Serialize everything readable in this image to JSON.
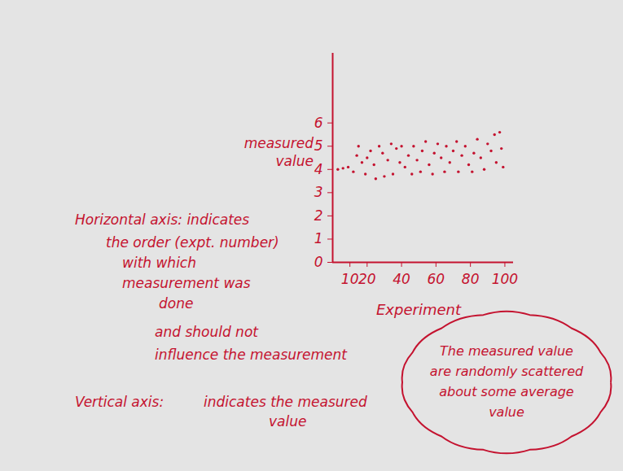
{
  "chart_data": {
    "type": "scatter",
    "x_label": "Experiment",
    "y_label": "measured value",
    "x": [
      3,
      6,
      9,
      12,
      14,
      15,
      17,
      19,
      20,
      22,
      24,
      25,
      27,
      29,
      30,
      32,
      34,
      35,
      37,
      39,
      40,
      42,
      44,
      46,
      47,
      49,
      51,
      52,
      54,
      56,
      58,
      59,
      61,
      63,
      65,
      66,
      68,
      70,
      72,
      73,
      75,
      77,
      79,
      81,
      82,
      84,
      86,
      88,
      90,
      92,
      94,
      95,
      97,
      98,
      99
    ],
    "values": [
      4.0,
      4.05,
      4.1,
      3.9,
      4.6,
      5.0,
      4.3,
      3.8,
      4.5,
      4.8,
      4.2,
      3.6,
      5.0,
      4.7,
      3.7,
      4.4,
      5.1,
      3.8,
      4.9,
      4.3,
      5.0,
      4.1,
      4.6,
      3.8,
      5.0,
      4.4,
      3.9,
      4.8,
      5.2,
      4.2,
      3.8,
      4.7,
      5.1,
      4.5,
      3.9,
      5.0,
      4.3,
      4.8,
      5.2,
      3.9,
      4.6,
      5.0,
      4.2,
      3.9,
      4.7,
      5.3,
      4.5,
      4.0,
      5.1,
      4.8,
      5.5,
      4.3,
      5.6,
      4.9,
      4.1
    ],
    "color": "#c4122f",
    "marker": "dot",
    "xlim": [
      0,
      105
    ],
    "ylim": [
      0,
      9
    ],
    "xticks": [
      10,
      20,
      40,
      60,
      80,
      100
    ],
    "yticks": [
      0,
      1,
      2,
      3,
      4,
      5,
      6
    ],
    "grid": false,
    "annotations": {
      "horizontal_axis": [
        "Horizontal axis: indicates",
        "the order (expt. number)",
        "with which",
        "measurement was",
        "done",
        "and should not",
        "influence the measurement"
      ],
      "vertical_axis": [
        "Vertical axis:",
        "indicates the measured",
        "value"
      ],
      "callout": [
        "The measured value",
        "are randomly scattered",
        "about some average",
        "value"
      ]
    }
  }
}
